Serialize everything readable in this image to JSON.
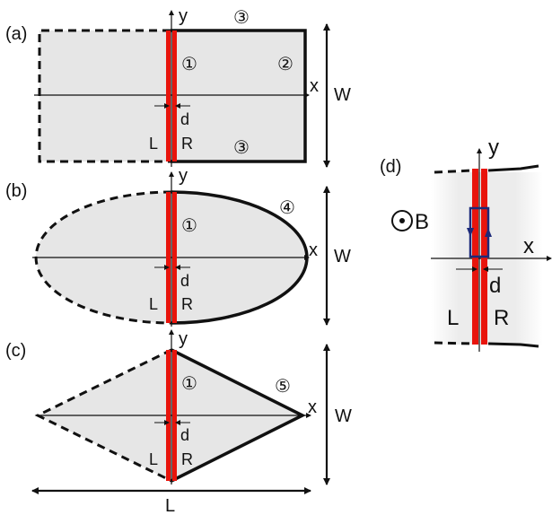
{
  "panels": [
    {
      "tag": "(a)",
      "y_axis": "y",
      "x_axis": "x",
      "width_label": "W",
      "gap_label": "d",
      "left_label": "L",
      "right_label": "R",
      "markers": [
        "①",
        "②",
        "③",
        "③"
      ]
    },
    {
      "tag": "(b)",
      "y_axis": "y",
      "x_axis": "x",
      "width_label": "W",
      "gap_label": "d",
      "left_label": "L",
      "right_label": "R",
      "markers": [
        "①",
        "④"
      ]
    },
    {
      "tag": "(c)",
      "y_axis": "y",
      "x_axis": "x",
      "width_label": "W",
      "length_label": "L",
      "gap_label": "d",
      "left_label": "L",
      "right_label": "R",
      "markers": [
        "①",
        "⑤"
      ]
    },
    {
      "tag": "(d)",
      "y_axis": "y",
      "x_axis": "x",
      "field_label": "B",
      "gap_label": "d",
      "left_label": "L",
      "right_label": "R"
    }
  ],
  "colors": {
    "strip": "#e8140c",
    "fill": "#e6e6e6",
    "loop": "#1c2a7a"
  }
}
